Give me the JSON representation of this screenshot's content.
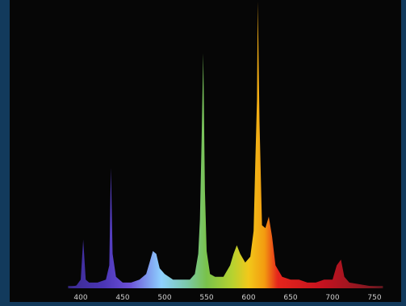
{
  "chart_data": {
    "type": "area",
    "title": "",
    "xlabel": "",
    "ylabel": "",
    "xlim": [
      385,
      760
    ],
    "ylim": [
      0,
      100
    ],
    "grid": false,
    "legend": "none",
    "x_ticks": [
      "400",
      "450",
      "500",
      "550",
      "600",
      "650",
      "700",
      "750"
    ],
    "spectrum": [
      [
        385,
        0
      ],
      [
        395,
        1
      ],
      [
        400,
        3
      ],
      [
        403,
        17
      ],
      [
        406,
        3
      ],
      [
        410,
        2
      ],
      [
        420,
        2
      ],
      [
        430,
        3
      ],
      [
        434,
        8
      ],
      [
        436,
        42
      ],
      [
        438,
        12
      ],
      [
        442,
        4
      ],
      [
        450,
        2
      ],
      [
        460,
        2
      ],
      [
        470,
        3
      ],
      [
        478,
        5
      ],
      [
        482,
        9
      ],
      [
        486,
        13
      ],
      [
        490,
        12
      ],
      [
        494,
        7
      ],
      [
        500,
        5
      ],
      [
        510,
        3
      ],
      [
        520,
        3
      ],
      [
        530,
        3
      ],
      [
        536,
        5
      ],
      [
        540,
        12
      ],
      [
        542,
        24
      ],
      [
        544,
        52
      ],
      [
        546,
        82
      ],
      [
        548,
        34
      ],
      [
        550,
        13
      ],
      [
        554,
        5
      ],
      [
        560,
        4
      ],
      [
        570,
        4
      ],
      [
        578,
        8
      ],
      [
        582,
        12
      ],
      [
        586,
        15
      ],
      [
        590,
        12
      ],
      [
        596,
        9
      ],
      [
        602,
        11
      ],
      [
        606,
        20
      ],
      [
        608,
        44
      ],
      [
        610,
        66
      ],
      [
        611,
        100
      ],
      [
        613,
        58
      ],
      [
        616,
        22
      ],
      [
        620,
        21
      ],
      [
        624,
        25
      ],
      [
        628,
        18
      ],
      [
        632,
        8
      ],
      [
        640,
        4
      ],
      [
        650,
        3
      ],
      [
        660,
        3
      ],
      [
        670,
        2
      ],
      [
        680,
        2
      ],
      [
        690,
        3
      ],
      [
        700,
        3
      ],
      [
        705,
        8
      ],
      [
        710,
        10
      ],
      [
        714,
        4
      ],
      [
        720,
        2
      ],
      [
        740,
        1
      ],
      [
        760,
        0
      ]
    ]
  }
}
